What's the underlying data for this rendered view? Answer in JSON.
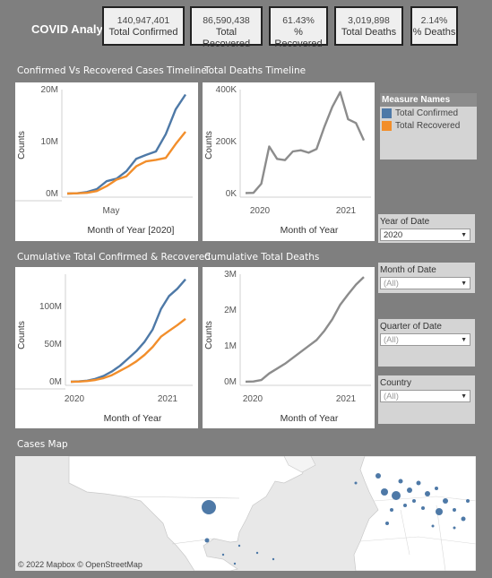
{
  "header": {
    "title": "COVID Analysis"
  },
  "kpis": [
    {
      "value": "140,947,401",
      "label": "Total Confirmed"
    },
    {
      "value": "86,590,438",
      "label": "Total Recovered"
    },
    {
      "value": "61.43%",
      "label": "% Recovered"
    },
    {
      "value": "3,019,898",
      "label": "Total Deaths"
    },
    {
      "value": "2.14%",
      "label": "% Deaths"
    }
  ],
  "sections": {
    "confirmed_vs_recovered": "Confirmed Vs Recovered Cases Timeline",
    "total_deaths": "Total Deaths Timeline",
    "cumulative_cr": "Cumulative Total Confirmed & Recovered",
    "cumulative_deaths": "Cumulative Total Deaths",
    "cases_map": "Cases Map"
  },
  "legend": {
    "title": "Measure Names",
    "items": [
      {
        "label": "Total Confirmed",
        "color": "#4e79a7"
      },
      {
        "label": "Total Recovered",
        "color": "#f28e2b"
      }
    ]
  },
  "filters": [
    {
      "label": "Year of Date",
      "value": "2020"
    },
    {
      "label": "Month of Date",
      "value": "(All)"
    },
    {
      "label": "Quarter of Date",
      "value": "(All)"
    },
    {
      "label": "Country",
      "value": "(All)"
    }
  ],
  "map": {
    "attribution": "© 2022 Mapbox  © OpenStreetMap"
  },
  "chart_data": [
    {
      "type": "line",
      "title": "Confirmed Vs Recovered Cases Timeline",
      "xlabel": "Month of Year [2020]",
      "ylabel": "Counts",
      "x_tick_labels": [
        "May"
      ],
      "y_tick_labels": [
        "0M",
        "10M",
        "20M"
      ],
      "ylim": [
        0,
        21000000
      ],
      "series": [
        {
          "name": "Total Confirmed",
          "color": "#4e79a7",
          "values": [
            0,
            50000,
            300000,
            900000,
            2500000,
            3000000,
            4500000,
            7000000,
            7800000,
            8500000,
            12000000,
            17000000,
            20000000
          ]
        },
        {
          "name": "Total Recovered",
          "color": "#f28e2b",
          "values": [
            0,
            50000,
            150000,
            500000,
            1500000,
            2800000,
            3500000,
            5500000,
            6500000,
            6800000,
            7200000,
            10000000,
            12500000
          ]
        }
      ]
    },
    {
      "type": "line",
      "title": "Total Deaths Timeline",
      "xlabel": "Month of Year",
      "ylabel": "Counts",
      "x_tick_labels": [
        "2020",
        "2021"
      ],
      "y_tick_labels": [
        "0K",
        "200K",
        "400K"
      ],
      "ylim": [
        0,
        420000
      ],
      "series": [
        {
          "name": "Total Deaths",
          "color": "#8c8c8c",
          "values": [
            2000,
            3000,
            40000,
            190000,
            140000,
            135000,
            170000,
            175000,
            165000,
            180000,
            270000,
            350000,
            410000,
            300000,
            285000,
            215000
          ]
        }
      ]
    },
    {
      "type": "line",
      "title": "Cumulative Total Confirmed & Recovered",
      "xlabel": "Month of Year",
      "ylabel": "Counts",
      "x_tick_labels": [
        "2020",
        "2021"
      ],
      "y_tick_labels": [
        "0M",
        "50M",
        "100M"
      ],
      "ylim": [
        0,
        148000000
      ],
      "series": [
        {
          "name": "Total Confirmed",
          "color": "#4e79a7",
          "values": [
            0,
            500000,
            1500000,
            4000000,
            8000000,
            14000000,
            22000000,
            32000000,
            42000000,
            55000000,
            72000000,
            100000000,
            118000000,
            128000000,
            141000000
          ]
        },
        {
          "name": "Total Recovered",
          "color": "#f28e2b",
          "values": [
            0,
            300000,
            1000000,
            2500000,
            5000000,
            9000000,
            15000000,
            21000000,
            28000000,
            37000000,
            48000000,
            62000000,
            70000000,
            78000000,
            86600000
          ]
        }
      ]
    },
    {
      "type": "line",
      "title": "Cumulative Total Deaths",
      "xlabel": "Month of Year",
      "ylabel": "Counts",
      "x_tick_labels": [
        "2020",
        "2021"
      ],
      "y_tick_labels": [
        "0M",
        "1M",
        "2M",
        "3M"
      ],
      "ylim": [
        0,
        3100000
      ],
      "series": [
        {
          "name": "Total Deaths",
          "color": "#8c8c8c",
          "values": [
            2000,
            7000,
            50000,
            240000,
            380000,
            520000,
            690000,
            860000,
            1030000,
            1200000,
            1470000,
            1800000,
            2220000,
            2520000,
            2800000,
            3020000
          ]
        }
      ]
    }
  ]
}
